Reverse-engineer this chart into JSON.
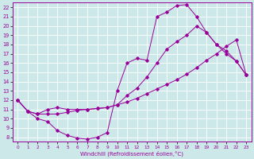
{
  "xlabel": "Windchill (Refroidissement éolien,°C)",
  "bg_color": "#cce8e8",
  "grid_color": "#ffffff",
  "line_color": "#990099",
  "xlim": [
    -0.5,
    23.5
  ],
  "ylim": [
    7.5,
    22.5
  ],
  "xticks": [
    0,
    1,
    2,
    3,
    4,
    5,
    6,
    7,
    8,
    9,
    10,
    11,
    12,
    13,
    14,
    15,
    16,
    17,
    18,
    19,
    20,
    21,
    22,
    23
  ],
  "yticks": [
    8,
    9,
    10,
    11,
    12,
    13,
    14,
    15,
    16,
    17,
    18,
    19,
    20,
    21,
    22
  ],
  "line1_x": [
    0,
    1,
    2,
    3,
    4,
    5,
    6,
    7,
    8,
    9,
    10,
    11,
    12,
    13,
    14,
    15,
    16,
    17,
    18,
    19,
    20,
    21,
    22,
    23
  ],
  "line1_y": [
    12.0,
    10.8,
    10.0,
    9.7,
    8.7,
    8.2,
    7.9,
    7.8,
    8.0,
    8.5,
    13.0,
    16.0,
    16.5,
    16.3,
    21.0,
    21.5,
    22.2,
    22.3,
    21.0,
    19.3,
    18.0,
    17.0,
    16.2,
    14.7
  ],
  "line2_x": [
    0,
    1,
    2,
    3,
    4,
    5,
    6,
    7,
    8,
    9,
    10,
    11,
    12,
    13,
    14,
    15,
    16,
    17,
    18,
    19,
    20,
    21,
    22,
    23
  ],
  "line2_y": [
    12.0,
    10.8,
    10.5,
    11.0,
    11.2,
    11.0,
    11.0,
    11.0,
    11.1,
    11.2,
    11.5,
    12.5,
    13.3,
    14.5,
    16.0,
    17.5,
    18.3,
    19.0,
    20.0,
    19.3,
    18.0,
    17.3,
    16.2,
    14.7
  ],
  "line3_x": [
    0,
    1,
    2,
    3,
    4,
    5,
    6,
    7,
    8,
    9,
    10,
    11,
    12,
    13,
    14,
    15,
    16,
    17,
    18,
    19,
    20,
    21,
    22,
    23
  ],
  "line3_y": [
    12.0,
    10.8,
    10.5,
    10.5,
    10.5,
    10.7,
    10.9,
    11.0,
    11.1,
    11.2,
    11.5,
    11.8,
    12.2,
    12.7,
    13.2,
    13.7,
    14.2,
    14.8,
    15.5,
    16.3,
    17.0,
    17.8,
    18.5,
    14.7
  ]
}
